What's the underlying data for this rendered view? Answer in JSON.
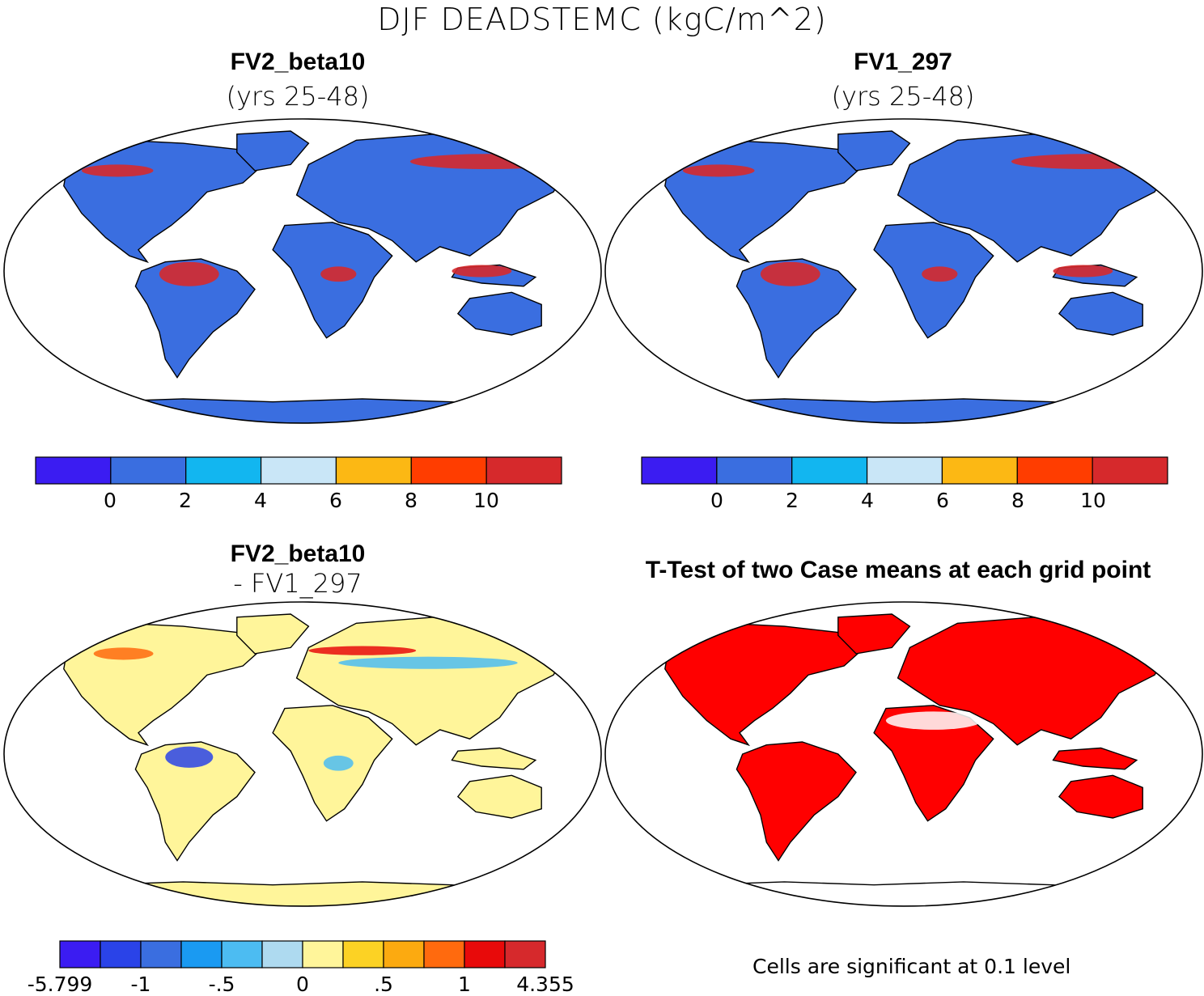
{
  "figure": {
    "title": "DJF DEADSTEMC (kgC/m^2)"
  },
  "panels": [
    {
      "id": "p1",
      "title": "FV2_beta10",
      "subtitle": "(yrs 25-48)"
    },
    {
      "id": "p2",
      "title": "FV1_297",
      "subtitle": "(yrs 25-48)"
    },
    {
      "id": "p3",
      "title": "FV2_beta10",
      "subtitle": "- FV1_297"
    },
    {
      "id": "p4",
      "title": "T-Test of two Case means at each grid point",
      "subtitle": ""
    }
  ],
  "colorbars": {
    "abs": {
      "colors": [
        "#3b1cf2",
        "#3a6ee0",
        "#12b6f0",
        "#c9e6f7",
        "#fcb814",
        "#ff3d00",
        "#d6292c"
      ],
      "tick_labels": [
        "0",
        "2",
        "4",
        "6",
        "8",
        "10"
      ]
    },
    "diff": {
      "colors": [
        "#3b1cf2",
        "#2a43e8",
        "#3a6ee0",
        "#1a9af2",
        "#4cbcf2",
        "#aedaf0",
        "#fff59a",
        "#fcd224",
        "#fcaa10",
        "#ff6a0e",
        "#e80a0a",
        "#d6292c"
      ],
      "tick_labels": [
        "-5.799",
        "-1",
        "-.5",
        "0",
        ".5",
        "1",
        "4.355"
      ]
    }
  },
  "map_colors": {
    "ocean": "#ffffff",
    "abs_dominant": "#3a6ee0",
    "abs_tropics": "#d6292c",
    "diff_dominant": "#fff59a",
    "ttest_significant": "#ff0000",
    "coast": "#000000"
  },
  "footnote": "Cells are significant at 0.1 level"
}
